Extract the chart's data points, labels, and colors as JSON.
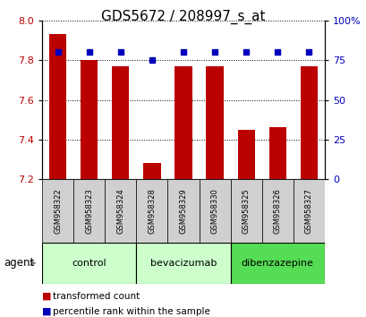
{
  "title": "GDS5672 / 208997_s_at",
  "samples": [
    "GSM958322",
    "GSM958323",
    "GSM958324",
    "GSM958328",
    "GSM958329",
    "GSM958330",
    "GSM958325",
    "GSM958326",
    "GSM958327"
  ],
  "red_values": [
    7.93,
    7.8,
    7.77,
    7.28,
    7.77,
    7.77,
    7.45,
    7.46,
    7.77
  ],
  "blue_values": [
    80,
    80,
    80,
    75,
    80,
    80,
    80,
    80,
    80
  ],
  "ylim_left": [
    7.2,
    8.0
  ],
  "ylim_right": [
    0,
    100
  ],
  "yticks_left": [
    7.2,
    7.4,
    7.6,
    7.8,
    8.0
  ],
  "yticks_right": [
    0,
    25,
    50,
    75,
    100
  ],
  "group_configs": [
    {
      "label": "control",
      "start": 0,
      "end": 2,
      "color": "#ccffcc"
    },
    {
      "label": "bevacizumab",
      "start": 3,
      "end": 5,
      "color": "#ccffcc"
    },
    {
      "label": "dibenzazepine",
      "start": 6,
      "end": 8,
      "color": "#55dd55"
    }
  ],
  "bar_color": "#bb0000",
  "dot_color": "#0000bb",
  "bar_width": 0.55,
  "legend_red_label": "transformed count",
  "legend_blue_label": "percentile rank within the sample",
  "agent_label": "agent",
  "title_fontsize": 11,
  "tick_fontsize": 8,
  "sample_fontsize": 6,
  "group_fontsize": 8
}
